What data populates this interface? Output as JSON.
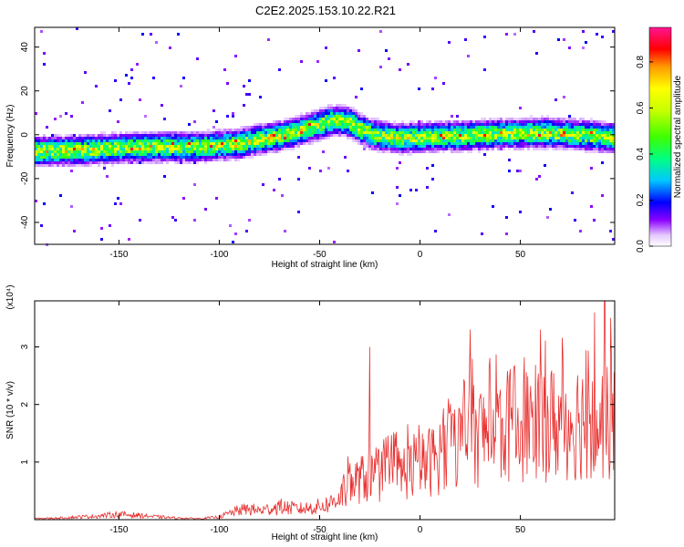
{
  "figure_title": "C2E2.2025.153.10.22.R21",
  "chart_data": [
    {
      "type": "heatmap",
      "title": "C2E2.2025.153.10.22.R21",
      "xlabel": "Height of straight line (km)",
      "ylabel": "Frequency (Hz)",
      "xlim": [
        -192,
        97
      ],
      "ylim": [
        -50,
        49
      ],
      "xticks": [
        -150,
        -100,
        -50,
        0,
        50
      ],
      "yticks": [
        -40,
        -20,
        0,
        20,
        40
      ],
      "grid": false,
      "colorbar": {
        "label": "Normalized spectral amplitude",
        "range": [
          0,
          0.95
        ],
        "ticks": [
          0.0,
          0.2,
          0.4,
          0.6,
          0.8
        ]
      },
      "ridge": {
        "x": [
          -192,
          -170,
          -150,
          -130,
          -110,
          -90,
          -80,
          -70,
          -60,
          -50,
          -45,
          -40,
          -35,
          -30,
          -25,
          -20,
          -10,
          0,
          20,
          40,
          60,
          80,
          97
        ],
        "freq": [
          -7,
          -6.5,
          -5.5,
          -5,
          -5,
          -3.5,
          -1.5,
          0,
          2.5,
          5.5,
          7,
          7,
          6,
          3,
          1,
          0,
          -1,
          -0.5,
          0,
          1,
          1.5,
          0.5,
          -1
        ]
      }
    },
    {
      "type": "line",
      "title": "",
      "xlabel": "Height of straight line (km)",
      "ylabel": "SNR (10 * v/v)",
      "y_multiplier": "(x10⁴)",
      "xlim": [
        -192,
        97
      ],
      "ylim": [
        0,
        3.8
      ],
      "xticks": [
        -150,
        -100,
        -50,
        0,
        50
      ],
      "yticks": [
        1,
        2,
        3
      ],
      "grid": false,
      "series": [
        {
          "color": "#e83030",
          "x": [
            -192,
            -180,
            -170,
            -160,
            -150,
            -140,
            -130,
            -120,
            -110,
            -100,
            -95,
            -90,
            -85,
            -80,
            -75,
            -70,
            -65,
            -60,
            -55,
            -50,
            -45,
            -40,
            -35,
            -30,
            -25,
            -20,
            -15,
            -10,
            -5,
            0,
            5,
            10,
            15,
            20,
            25,
            30,
            35,
            40,
            45,
            50,
            55,
            60,
            65,
            70,
            75,
            80,
            85,
            90,
            97
          ],
          "values": [
            0.02,
            0.03,
            0.05,
            0.07,
            0.1,
            0.08,
            0.05,
            0.03,
            0.02,
            0.05,
            0.12,
            0.18,
            0.2,
            0.17,
            0.2,
            0.25,
            0.22,
            0.2,
            0.22,
            0.25,
            0.3,
            0.45,
            0.65,
            0.75,
            0.8,
            0.8,
            0.85,
            0.9,
            0.95,
            1.0,
            1.1,
            1.2,
            1.35,
            1.45,
            1.55,
            1.6,
            1.65,
            1.7,
            1.75,
            1.8,
            1.8,
            1.85,
            1.8,
            1.8,
            1.85,
            1.9,
            1.85,
            1.8,
            1.75
          ],
          "spikes": [
            {
              "x": -25,
              "y": 3.0
            },
            {
              "x": 25,
              "y": 3.3
            },
            {
              "x": 60,
              "y": 3.3
            },
            {
              "x": 87,
              "y": 3.6
            },
            {
              "x": 92,
              "y": 3.8
            },
            {
              "x": 95,
              "y": 3.5
            }
          ]
        }
      ]
    }
  ]
}
